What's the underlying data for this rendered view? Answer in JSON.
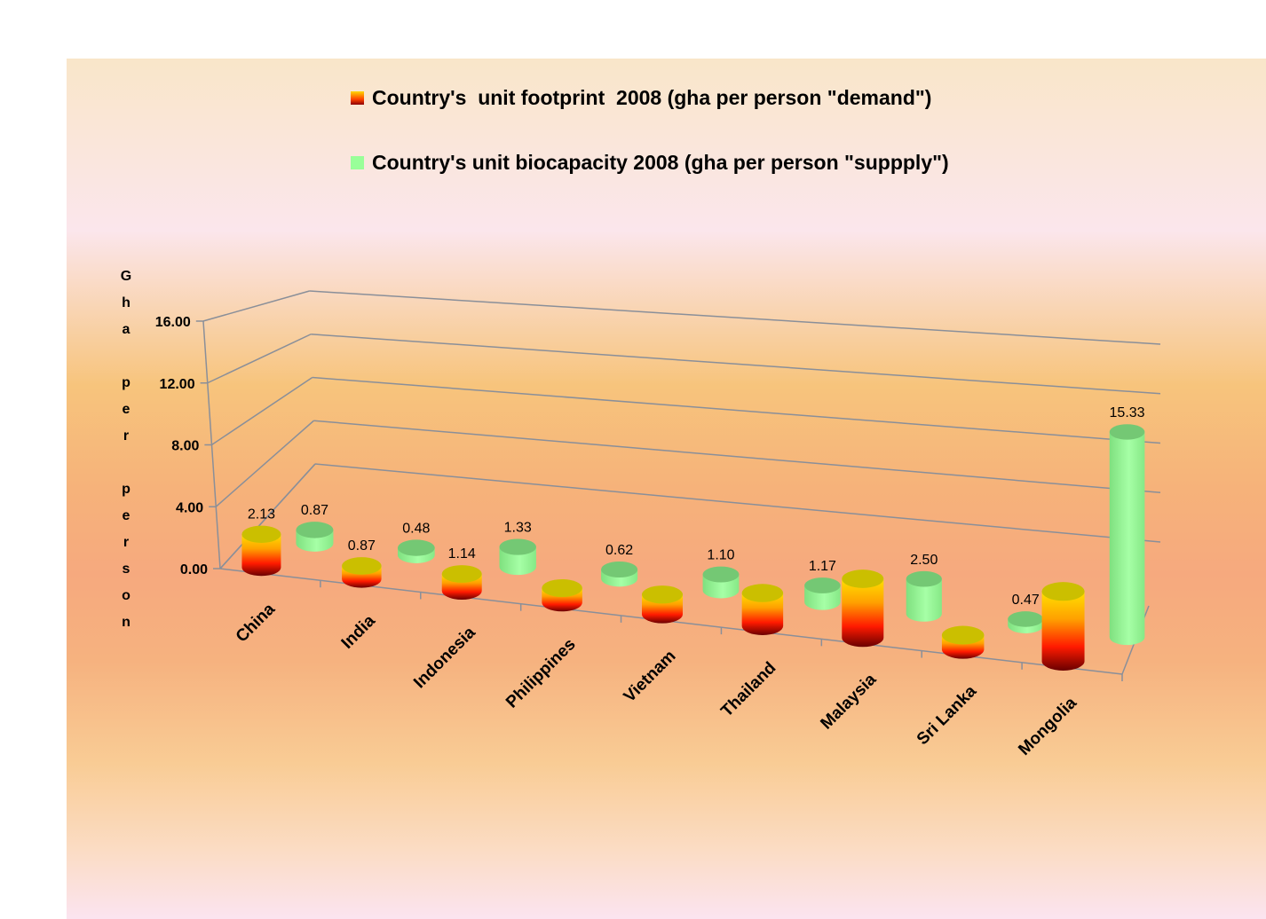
{
  "legend": {
    "demand_label": "Country's  unit footprint  2008 (gha per person \"demand\")",
    "supply_label": "Country's unit biocapacity 2008 (gha per person \"suppply\")",
    "demand_colors": [
      "#ffd800",
      "#ff2000",
      "#8a0000"
    ],
    "supply_color": "#99ff99"
  },
  "axis": {
    "y_title": "Gha per person",
    "y_ticks": [
      "16.00",
      "12.00",
      "8.00",
      "4.00",
      "0.00"
    ]
  },
  "chart_data": {
    "type": "bar",
    "subtype": "3d-cylinder",
    "title": "",
    "xlabel": "",
    "ylabel": "Gha per person",
    "ylim": [
      0,
      16
    ],
    "y_ticks": [
      0,
      4,
      8,
      12,
      16
    ],
    "grid": true,
    "legend_position": "top",
    "categories": [
      "China",
      "India",
      "Indonesia",
      "Philippines",
      "Vietnam",
      "Thailand",
      "Malaysia",
      "Sri Lanka",
      "Mongolia"
    ],
    "series": [
      {
        "name": "Country's  unit footprint  2008 (gha per person \"demand\")",
        "values": [
          2.13,
          0.87,
          1.14,
          1.0,
          1.4,
          2.4,
          4.4,
          1.1,
          5.5
        ],
        "labels": [
          "2.13",
          "0.87",
          "1.14",
          "",
          "",
          "",
          "",
          "",
          ""
        ]
      },
      {
        "name": "Country's unit biocapacity 2008 (gha per person \"suppply\")",
        "values": [
          0.87,
          0.48,
          1.33,
          0.62,
          1.1,
          1.17,
          2.5,
          0.47,
          15.33
        ],
        "labels": [
          "0.87",
          "0.48",
          "1.33",
          "0.62",
          "1.10",
          "1.17",
          "2.50",
          "0.47",
          "15.33"
        ]
      }
    ]
  }
}
